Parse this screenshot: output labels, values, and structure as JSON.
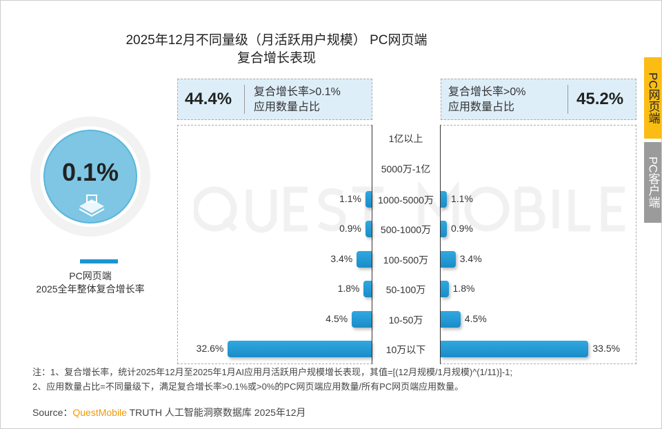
{
  "title_line1": "2025年12月不同量级（月活跃用户规模） PC网页端",
  "title_line2": "复合增长表现",
  "watermark": "QUESTMOBILE",
  "tabs": [
    {
      "label": "PC网页端",
      "active": true
    },
    {
      "label": "PC客户端",
      "active": false
    }
  ],
  "colors": {
    "bar": "#1a95d3",
    "active_tab": "#fbbd14",
    "inactive_tab": "#9b9b9b",
    "circle": "#7ec6e3",
    "brand": "#f39800"
  },
  "overall": {
    "value": "0.1%",
    "label1": "PC网页端",
    "label2": "2025全年整体复合增长率",
    "icon": "desktop-icon"
  },
  "kpi_left": {
    "value": "44.4%",
    "desc1": "复合增长率>0.1%",
    "desc2": "应用数量占比"
  },
  "kpi_right": {
    "value": "45.2%",
    "desc1": "复合增长率>0%",
    "desc2": "应用数量占比"
  },
  "chart_data": {
    "type": "bar",
    "orientation": "horizontal-butterfly",
    "categories": [
      "1亿以上",
      "5000万-1亿",
      "1000-5000万",
      "500-1000万",
      "100-500万",
      "50-100万",
      "10-50万",
      "10万以下"
    ],
    "series": [
      {
        "name": "复合增长率>0.1%",
        "values": [
          null,
          null,
          1.1,
          0.9,
          3.4,
          1.8,
          4.5,
          32.6
        ],
        "labels": [
          "",
          "",
          "1.1%",
          "0.9%",
          "3.4%",
          "1.8%",
          "4.5%",
          "32.6%"
        ]
      },
      {
        "name": "复合增长率>0%",
        "values": [
          null,
          null,
          1.1,
          0.9,
          3.4,
          1.8,
          4.5,
          33.5
        ],
        "labels": [
          "",
          "",
          "1.1%",
          "0.9%",
          "3.4%",
          "1.8%",
          "4.5%",
          "33.5%"
        ]
      }
    ],
    "unit": "%"
  },
  "notes": {
    "line1": "注：1、复合增长率，统计2025年12月至2025年1月AI应用月活跃用户规模增长表现，其值=[(12月规模/1月规模)^(1/11)]-1;",
    "line2": "2、应用数量占比=不同量级下，满足复合增长率>0.1%或>0%的PC网页端应用数量/所有PC网页端应用数量。",
    "source_prefix": "Source：",
    "source_brand": "QuestMobile",
    "source_rest": " TRUTH 人工智能洞察数据库 2025年12月"
  }
}
